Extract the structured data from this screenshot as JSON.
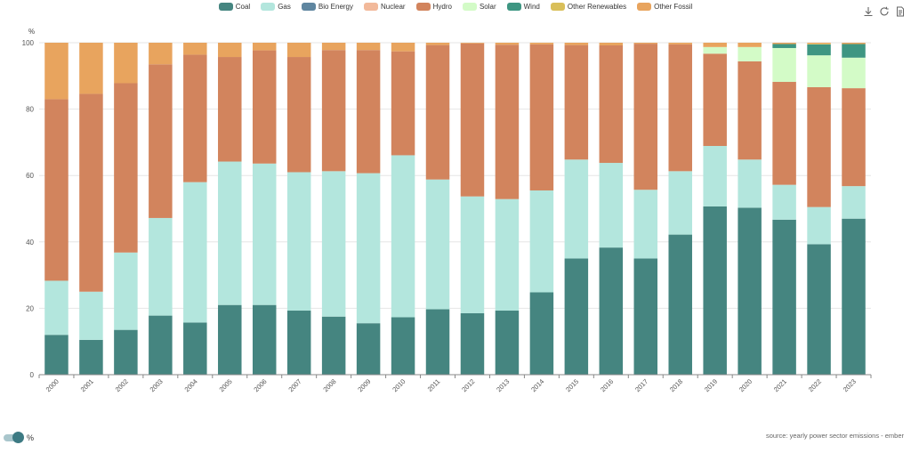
{
  "legend": [
    {
      "name": "Coal",
      "color": "#458580"
    },
    {
      "name": "Gas",
      "color": "#b3e6dd"
    },
    {
      "name": "Bio Energy",
      "color": "#5f86a0"
    },
    {
      "name": "Nuclear",
      "color": "#f2b99a"
    },
    {
      "name": "Hydro",
      "color": "#d2845d"
    },
    {
      "name": "Solar",
      "color": "#d3fbc7"
    },
    {
      "name": "Wind",
      "color": "#3e9682"
    },
    {
      "name": "Other Renewables",
      "color": "#d9bf5a"
    },
    {
      "name": "Other Fossil",
      "color": "#e8a45e"
    }
  ],
  "toolbox": {
    "icons": [
      "download-icon",
      "refresh-icon",
      "data-view-icon"
    ]
  },
  "toggle": {
    "label": "%"
  },
  "source": "source: yearly power sector emissions - ember",
  "chart_data": {
    "type": "bar",
    "stacked": true,
    "ylabel": "%",
    "ylim": [
      0,
      100
    ],
    "yticks": [
      0,
      20,
      40,
      60,
      80,
      100
    ],
    "grid": true,
    "legend_position": "top",
    "categories": [
      "2000",
      "2001",
      "2002",
      "2003",
      "2004",
      "2005",
      "2006",
      "2007",
      "2008",
      "2009",
      "2010",
      "2011",
      "2012",
      "2013",
      "2014",
      "2015",
      "2016",
      "2017",
      "2018",
      "2019",
      "2020",
      "2021",
      "2022",
      "2023"
    ],
    "series": [
      {
        "name": "Coal",
        "color": "#458580",
        "values": [
          12,
          10.5,
          13.5,
          17.8,
          15.7,
          21,
          21,
          19.3,
          17.5,
          15.5,
          17.3,
          19.7,
          18.5,
          19.3,
          24.8,
          35,
          38.3,
          35,
          42.2,
          50.7,
          50.3,
          46.7,
          39.3,
          47
        ]
      },
      {
        "name": "Gas",
        "color": "#b3e6dd",
        "values": [
          16.3,
          14.5,
          23.3,
          29.4,
          42.3,
          43.2,
          42.6,
          41.7,
          43.8,
          45.2,
          48.8,
          39.1,
          35.2,
          33.6,
          30.7,
          29.8,
          25.5,
          20.7,
          19.1,
          18.2,
          14.5,
          10.5,
          11.2,
          9.8
        ]
      },
      {
        "name": "Bio Energy",
        "color": "#5f86a0",
        "values": [
          0,
          0,
          0,
          0,
          0,
          0,
          0,
          0,
          0,
          0,
          0,
          0,
          0,
          0,
          0,
          0,
          0,
          0,
          0,
          0,
          0,
          0,
          0,
          0
        ]
      },
      {
        "name": "Nuclear",
        "color": "#f2b99a",
        "values": [
          0,
          0,
          0,
          0,
          0,
          0,
          0,
          0,
          0,
          0,
          0,
          0,
          0,
          0,
          0,
          0,
          0,
          0,
          0,
          0,
          0,
          0,
          0,
          0
        ]
      },
      {
        "name": "Hydro",
        "color": "#d2845d",
        "values": [
          54.7,
          59.6,
          51,
          46.3,
          38.4,
          31.5,
          34.1,
          34.7,
          36.5,
          37.1,
          31.3,
          40.5,
          46.1,
          46.5,
          44,
          34.5,
          35.4,
          44,
          38.2,
          27.8,
          29.6,
          31,
          36.1,
          29.5
        ]
      },
      {
        "name": "Solar",
        "color": "#d3fbc7",
        "values": [
          0,
          0,
          0,
          0,
          0,
          0,
          0,
          0,
          0,
          0,
          0,
          0,
          0,
          0,
          0,
          0,
          0,
          0,
          0,
          2,
          4.3,
          10.2,
          9.6,
          9.2
        ]
      },
      {
        "name": "Wind",
        "color": "#3e9682",
        "values": [
          0,
          0,
          0,
          0,
          0,
          0,
          0,
          0,
          0,
          0,
          0,
          0,
          0,
          0,
          0,
          0,
          0,
          0,
          0,
          0,
          0,
          1.2,
          3.3,
          4.1
        ]
      },
      {
        "name": "Other Renewables",
        "color": "#d9bf5a",
        "values": [
          0,
          0,
          0,
          0,
          0,
          0,
          0,
          0,
          0,
          0,
          0,
          0,
          0,
          0,
          0,
          0,
          0,
          0,
          0,
          0,
          0,
          0,
          0.2,
          0
        ]
      },
      {
        "name": "Other Fossil",
        "color": "#e8a45e",
        "values": [
          17,
          15.4,
          12.2,
          6.5,
          3.6,
          4.3,
          2.3,
          4.3,
          2.2,
          2.2,
          2.6,
          0.7,
          0.2,
          0.6,
          0.5,
          0.7,
          0.8,
          0.3,
          0.5,
          1.3,
          1.3,
          0.4,
          0.3,
          0.4
        ]
      }
    ]
  }
}
